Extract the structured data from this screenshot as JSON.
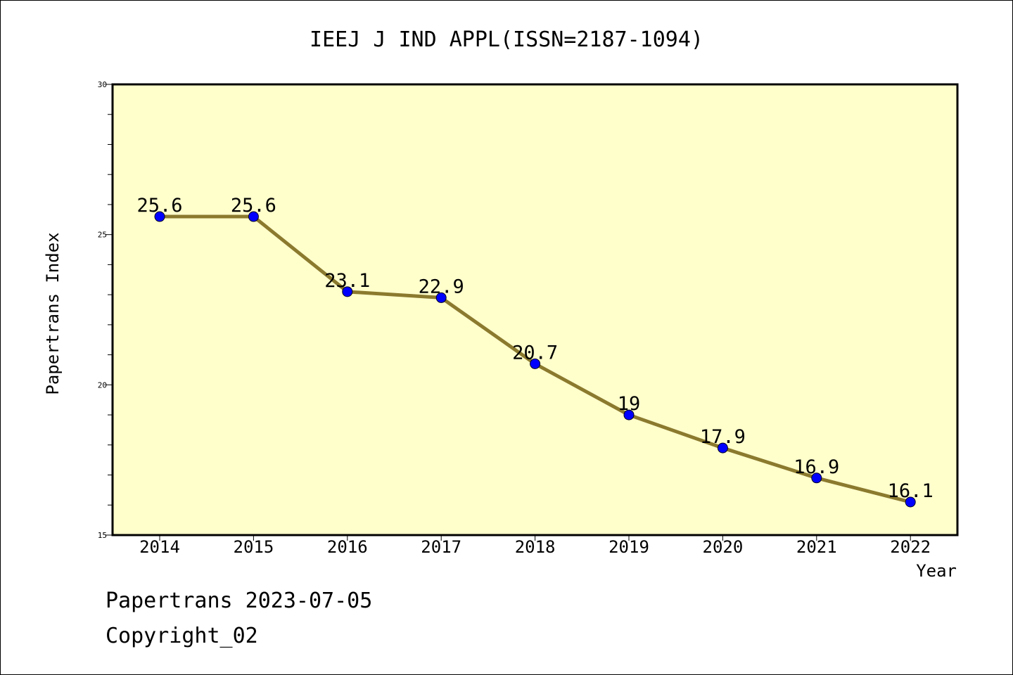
{
  "chart_data": {
    "type": "line",
    "title": "IEEJ J IND APPL(ISSN=2187-1094)",
    "xlabel": "Year",
    "ylabel": "Papertrans Index",
    "categories": [
      "2014",
      "2015",
      "2016",
      "2017",
      "2018",
      "2019",
      "2020",
      "2021",
      "2022"
    ],
    "values": [
      25.6,
      25.6,
      23.1,
      22.9,
      20.7,
      19,
      17.9,
      16.9,
      16.1
    ],
    "data_labels": [
      "25.6",
      "25.6",
      "23.1",
      "22.9",
      "20.7",
      "19",
      "17.9",
      "16.9",
      "16.1"
    ],
    "ylim": [
      15,
      30
    ],
    "y_ticks": [
      15,
      20,
      25,
      30
    ],
    "grid": false,
    "colors": {
      "plot_background": "#FFFFCC",
      "line": "#8B7A2E",
      "marker": "#0000FF"
    }
  },
  "footer": {
    "line1": "Papertrans 2023-07-05",
    "line2": "Copyright_02"
  }
}
